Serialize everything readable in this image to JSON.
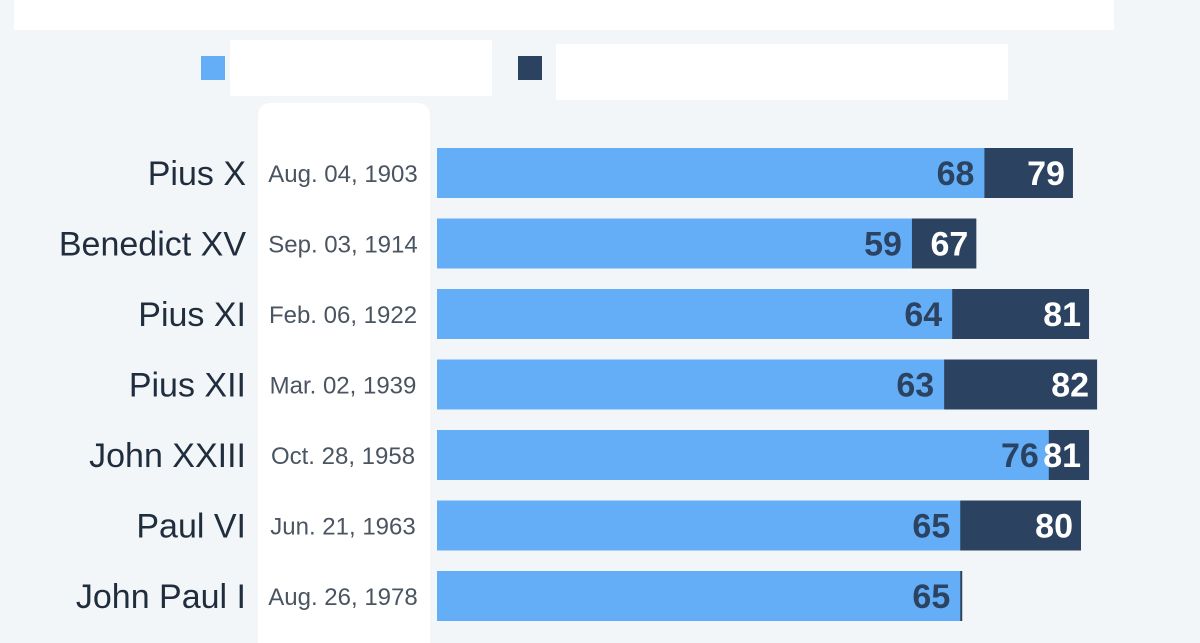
{
  "colors": {
    "age_at_election": "#64aef8",
    "age_at_death": "#2b4360",
    "label_light": "#2b4360",
    "label_dark": "#ffffff"
  },
  "chart_data": {
    "type": "bar",
    "orientation": "horizontal",
    "stacked": "overlay",
    "categories": [
      "Pius X",
      "Benedict XV",
      "Pius XI",
      "Pius XII",
      "John XXIII",
      "Paul VI",
      "John Paul I"
    ],
    "dates": [
      "Aug. 04, 1903",
      "Sep. 03, 1914",
      "Feb. 06, 1922",
      "Mar. 02, 1939",
      "Oct. 28, 1958",
      "Jun. 21, 1963",
      "Aug. 26, 1978"
    ],
    "series": [
      {
        "values": [
          68,
          59,
          64,
          63,
          76,
          65,
          65
        ]
      },
      {
        "values": [
          79,
          67,
          81,
          82,
          81,
          80,
          65
        ]
      }
    ],
    "second_series_labels": [
      "79",
      "67",
      "81",
      "82",
      "81",
      "80",
      ""
    ],
    "legend_placement": "top",
    "grid": false
  }
}
